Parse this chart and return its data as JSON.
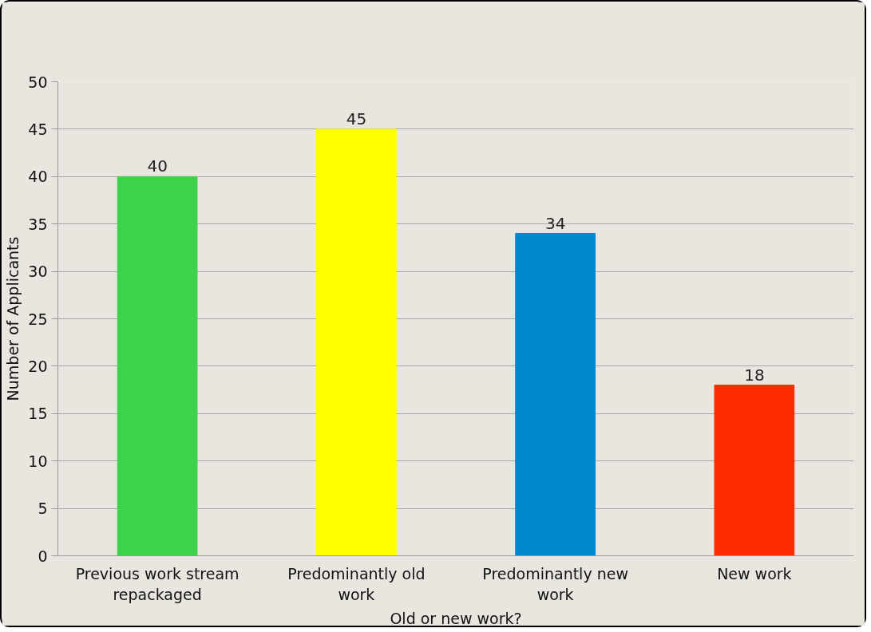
{
  "chart_data": {
    "type": "bar",
    "xlabel": "Old or new work?",
    "ylabel": "Number of Applicants",
    "categories": [
      "Previous work stream repackaged",
      "Predominantly old work",
      "Predominantly new work",
      "New work"
    ],
    "values": [
      40,
      45,
      34,
      18
    ],
    "colors": [
      "#3cd24a",
      "#ffff00",
      "#0088cc",
      "#ff2a00"
    ],
    "ylim": [
      0,
      50
    ],
    "yticks": [
      0,
      5,
      10,
      15,
      20,
      25,
      30,
      35,
      40,
      45,
      50
    ],
    "grid": "y",
    "data_labels": true
  }
}
